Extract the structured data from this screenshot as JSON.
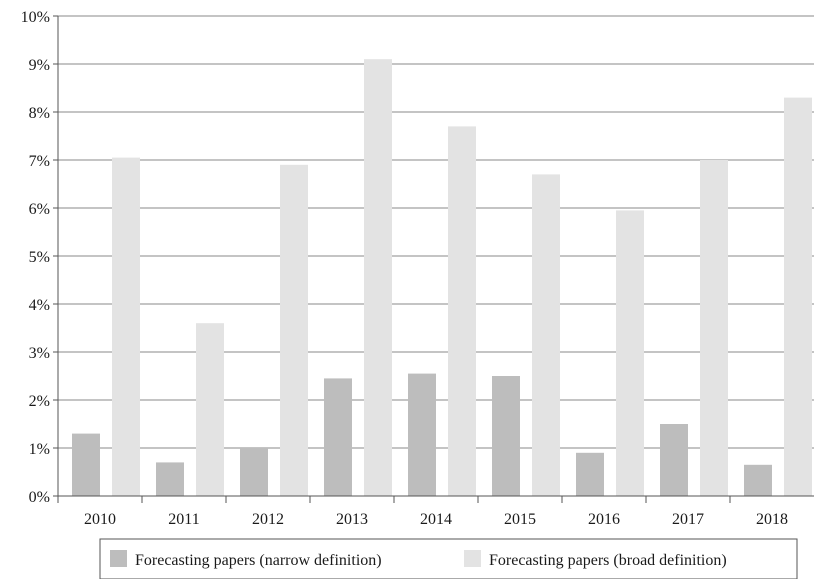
{
  "chart_data": {
    "type": "bar",
    "title": "",
    "xlabel": "",
    "ylabel": "",
    "categories": [
      "2010",
      "2011",
      "2012",
      "2013",
      "2014",
      "2015",
      "2016",
      "2017",
      "2018"
    ],
    "series": [
      {
        "name": "Forecasting papers (narrow definition)",
        "values": [
          1.3,
          0.7,
          1.0,
          2.45,
          2.55,
          2.5,
          0.9,
          1.5,
          0.65
        ],
        "color": "#bdbdbd"
      },
      {
        "name": "Forecasting papers (broad definition)",
        "values": [
          7.05,
          3.6,
          6.9,
          9.1,
          7.7,
          6.7,
          5.95,
          7.0,
          8.3
        ],
        "color": "#e3e3e3"
      }
    ],
    "ylim": [
      0,
      10
    ],
    "y_ticks": [
      "0%",
      "1%",
      "2%",
      "3%",
      "4%",
      "5%",
      "6%",
      "7%",
      "8%",
      "9%",
      "10%"
    ],
    "grid": "horizontal",
    "legend_position": "bottom"
  }
}
